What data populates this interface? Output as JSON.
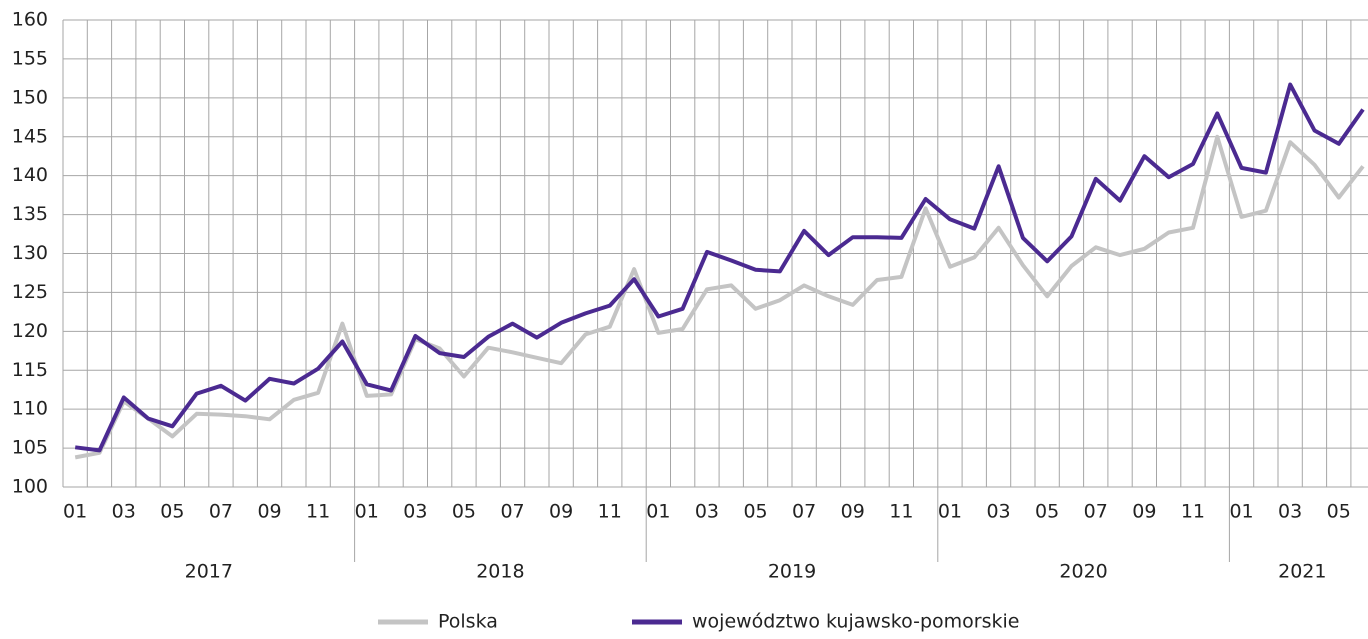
{
  "chart_data": {
    "type": "line",
    "categories": [
      "01",
      null,
      "03",
      null,
      "05",
      null,
      "07",
      null,
      "09",
      null,
      "11",
      null,
      "01",
      null,
      "03",
      null,
      "05",
      null,
      "07",
      null,
      "09",
      null,
      "11",
      null,
      "01",
      null,
      "03",
      null,
      "05",
      null,
      "07",
      null,
      "09",
      null,
      "11",
      null,
      "01",
      null,
      "03",
      null,
      "05",
      null,
      "07",
      null,
      "09",
      null,
      "11",
      null,
      "01",
      null,
      "03",
      null,
      "05",
      null
    ],
    "years": [
      "2017",
      "2018",
      "2019",
      "2020",
      "2021"
    ],
    "series": [
      {
        "name": "Polska",
        "color": "#c4c4c4",
        "values": [
          103.8,
          104.4,
          111,
          108.8,
          106.5,
          109.4,
          109.3,
          109.1,
          108.7,
          111.2,
          112.1,
          121,
          111.7,
          111.9,
          119,
          117.8,
          114.2,
          117.9,
          117.3,
          116.6,
          115.9,
          119.6,
          120.6,
          128,
          119.8,
          120.3,
          125.4,
          125.9,
          122.9,
          124,
          125.9,
          124.5,
          123.4,
          126.6,
          127,
          135.8,
          128.3,
          129.5,
          133.3,
          128.5,
          124.5,
          128.4,
          130.8,
          129.8,
          130.6,
          132.7,
          133.3,
          145,
          134.7,
          135.5,
          144.3,
          141.4,
          137.2,
          141.2
        ]
      },
      {
        "name": "województwo kujawsko-pomorskie",
        "color": "#4b2a91",
        "values": [
          105.1,
          104.7,
          111.5,
          108.8,
          107.8,
          112,
          113,
          111.1,
          113.9,
          113.3,
          115.2,
          118.7,
          113.2,
          112.4,
          119.4,
          117.2,
          116.7,
          119.3,
          121,
          119.2,
          121.1,
          122.3,
          123.3,
          126.7,
          121.9,
          122.9,
          130.2,
          129.1,
          127.9,
          127.7,
          132.9,
          129.8,
          132.1,
          132.1,
          132,
          137,
          134.4,
          133.2,
          141.2,
          132,
          129,
          132.2,
          139.6,
          136.8,
          142.5,
          139.8,
          141.5,
          148,
          141,
          140.4,
          151.7,
          145.8,
          144.1,
          148.5
        ]
      }
    ],
    "ylim": [
      100,
      160
    ],
    "yticks": [
      100,
      105,
      110,
      115,
      120,
      125,
      130,
      135,
      140,
      145,
      150,
      155,
      160
    ],
    "grid": true
  }
}
